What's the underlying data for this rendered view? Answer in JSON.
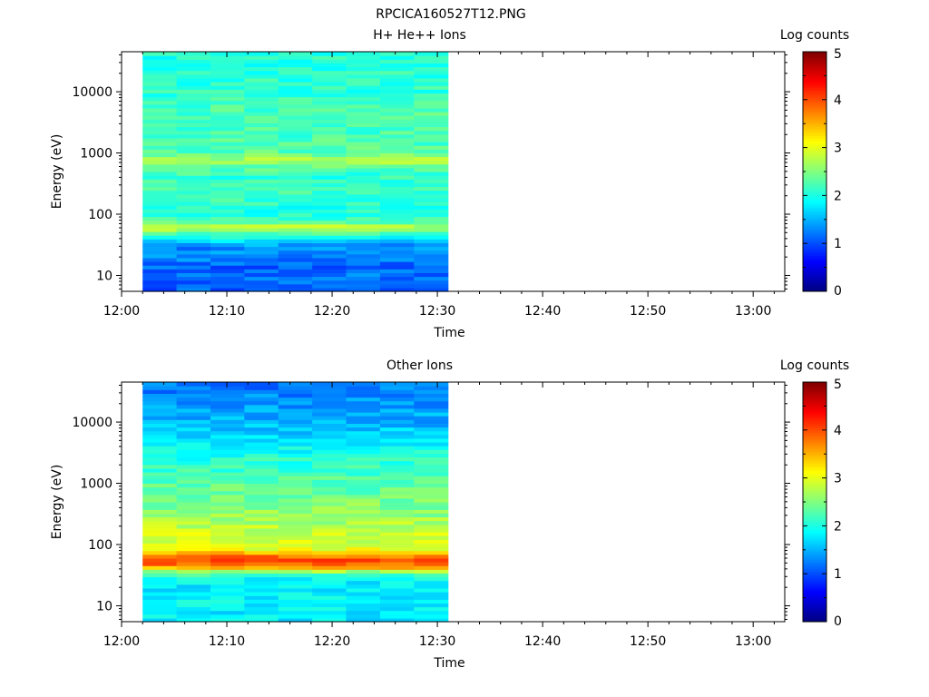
{
  "page_title": "RPCICA160527T12.PNG",
  "chart_data": [
    {
      "type": "heatmap",
      "title": "H+ He++ Ions",
      "xlabel": "Time",
      "ylabel": "Energy (eV)",
      "y_scale": "log",
      "x_ticks": [
        "12:00",
        "12:10",
        "12:20",
        "12:30",
        "12:40",
        "12:50",
        "13:00"
      ],
      "y_ticks": [
        "10",
        "100",
        "1000",
        "10000"
      ],
      "xlim": [
        "12:00",
        "13:03"
      ],
      "ylim": [
        5.5,
        45000
      ],
      "data_time_range": [
        "12:02",
        "12:31"
      ],
      "time_bins": 9,
      "colorbar": {
        "label": "Log counts",
        "ticks": [
          "0",
          "1",
          "2",
          "3",
          "4",
          "5"
        ],
        "range": [
          0,
          5
        ]
      },
      "energy_profile": [
        {
          "energy": 7,
          "log_counts": 1.1
        },
        {
          "energy": 10,
          "log_counts": 1.2
        },
        {
          "energy": 14,
          "log_counts": 1.1
        },
        {
          "energy": 20,
          "log_counts": 1.3
        },
        {
          "energy": 30,
          "log_counts": 1.3
        },
        {
          "energy": 40,
          "log_counts": 1.8
        },
        {
          "energy": 55,
          "log_counts": 2.6
        },
        {
          "energy": 63,
          "log_counts": 2.75
        },
        {
          "energy": 80,
          "log_counts": 2.2
        },
        {
          "energy": 120,
          "log_counts": 2.0
        },
        {
          "energy": 200,
          "log_counts": 2.2
        },
        {
          "energy": 400,
          "log_counts": 2.1
        },
        {
          "energy": 600,
          "log_counts": 2.3
        },
        {
          "energy": 760,
          "log_counts": 2.8
        },
        {
          "energy": 1000,
          "log_counts": 2.3
        },
        {
          "energy": 2000,
          "log_counts": 2.2
        },
        {
          "energy": 5000,
          "log_counts": 2.25
        },
        {
          "energy": 10000,
          "log_counts": 2.1
        },
        {
          "energy": 45000,
          "log_counts": 2.05
        }
      ]
    },
    {
      "type": "heatmap",
      "title": "Other Ions",
      "xlabel": "Time",
      "ylabel": "Energy (eV)",
      "y_scale": "log",
      "x_ticks": [
        "12:00",
        "12:10",
        "12:20",
        "12:30",
        "12:40",
        "12:50",
        "13:00"
      ],
      "y_ticks": [
        "10",
        "100",
        "1000",
        "10000"
      ],
      "xlim": [
        "12:00",
        "13:03"
      ],
      "ylim": [
        5.5,
        45000
      ],
      "data_time_range": [
        "12:02",
        "12:31"
      ],
      "time_bins": 9,
      "colorbar": {
        "label": "Log counts",
        "ticks": [
          "0",
          "1",
          "2",
          "3",
          "4",
          "5"
        ],
        "range": [
          0,
          5
        ]
      },
      "energy_profile": [
        {
          "energy": 7,
          "log_counts": 1.8
        },
        {
          "energy": 12,
          "log_counts": 1.85
        },
        {
          "energy": 20,
          "log_counts": 1.8
        },
        {
          "energy": 30,
          "log_counts": 1.9
        },
        {
          "energy": 37,
          "log_counts": 2.7
        },
        {
          "energy": 45,
          "log_counts": 3.8
        },
        {
          "energy": 55,
          "log_counts": 4.0
        },
        {
          "energy": 65,
          "log_counts": 3.8
        },
        {
          "energy": 90,
          "log_counts": 2.9
        },
        {
          "energy": 150,
          "log_counts": 2.9
        },
        {
          "energy": 300,
          "log_counts": 2.6
        },
        {
          "energy": 1000,
          "log_counts": 2.3
        },
        {
          "energy": 3000,
          "log_counts": 2.0
        },
        {
          "energy": 10000,
          "log_counts": 1.5
        },
        {
          "energy": 45000,
          "log_counts": 1.2
        }
      ]
    }
  ]
}
